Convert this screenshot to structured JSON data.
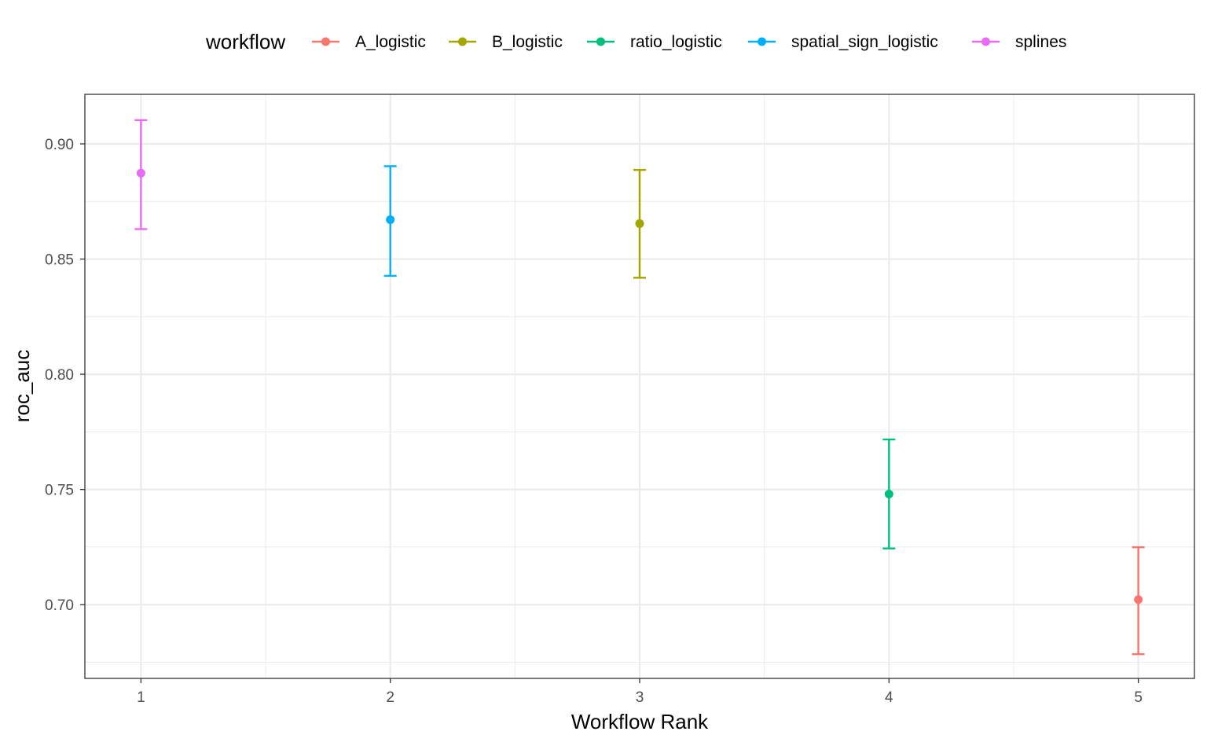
{
  "chart_data": {
    "type": "scatter",
    "subtype": "pointrange",
    "xlabel": "Workflow Rank",
    "ylabel": "roc_auc",
    "xlim": [
      0.775,
      5.225
    ],
    "ylim": [
      0.668,
      0.9215
    ],
    "x_ticks": [
      1,
      2,
      3,
      4,
      5
    ],
    "x_tick_labels": [
      "1",
      "2",
      "3",
      "4",
      "5"
    ],
    "y_ticks": [
      0.7,
      0.75,
      0.8,
      0.85,
      0.9
    ],
    "y_tick_labels": [
      "0.70",
      "0.75",
      "0.80",
      "0.85",
      "0.90"
    ],
    "grid": true,
    "legend": {
      "title": "workflow",
      "placement": "top",
      "entries": [
        "A_logistic",
        "B_logistic",
        "ratio_logistic",
        "spatial_sign_logistic",
        "splines"
      ]
    },
    "series": [
      {
        "name": "splines",
        "color": "#E76BF3",
        "x": 1,
        "y": 0.8873,
        "ymin": 0.863,
        "ymax": 0.9103
      },
      {
        "name": "spatial_sign_logistic",
        "color": "#00B0F6",
        "x": 2,
        "y": 0.8671,
        "ymin": 0.8427,
        "ymax": 0.8903
      },
      {
        "name": "B_logistic",
        "color": "#A3A500",
        "x": 3,
        "y": 0.8654,
        "ymin": 0.8419,
        "ymax": 0.8887
      },
      {
        "name": "ratio_logistic",
        "color": "#00BF7D",
        "x": 4,
        "y": 0.748,
        "ymin": 0.7244,
        "ymax": 0.7717
      },
      {
        "name": "A_logistic",
        "color": "#F8766D",
        "x": 5,
        "y": 0.7022,
        "ymin": 0.6785,
        "ymax": 0.7249
      }
    ]
  }
}
